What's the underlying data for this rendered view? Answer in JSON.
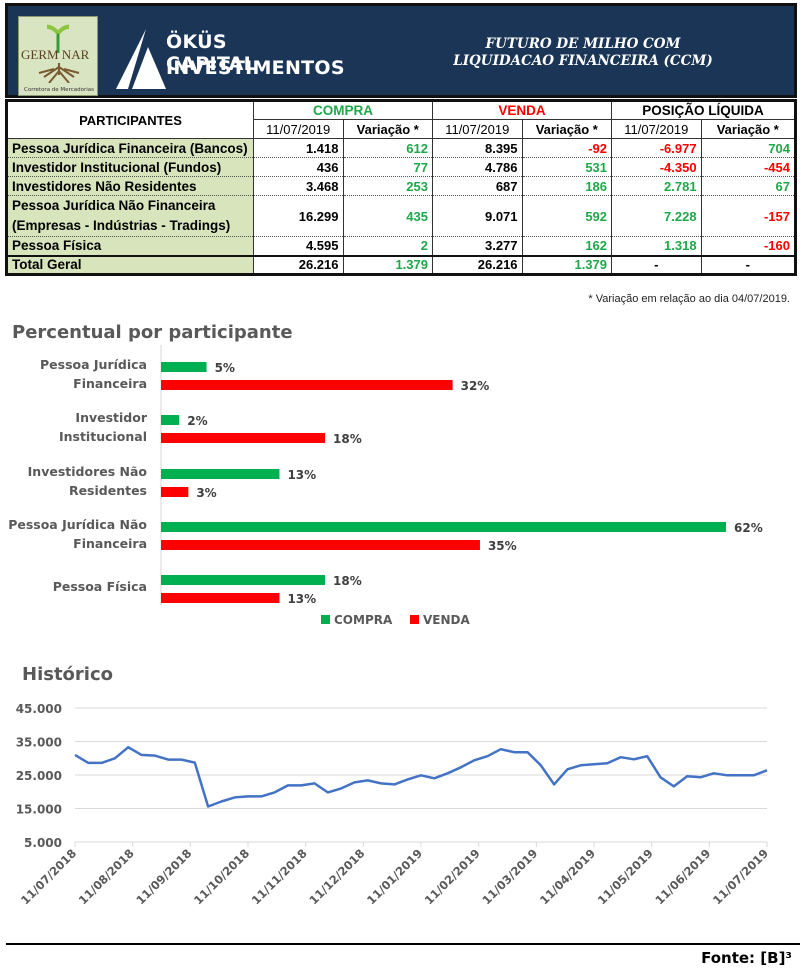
{
  "header": {
    "logo_left_text": "GERM NAR",
    "logo_left_sub": "Corretora de Mercadorias",
    "brand_line1": "ÖKÜS CAPITAL",
    "brand_line2": "INVESTIMENTOS",
    "title_line1": "FUTURO DE MILHO COM",
    "title_line2": "LIQUIDACAO FINANCEIRA (CCM)"
  },
  "table": {
    "participants_header": "PARTICIPANTES",
    "groups": [
      {
        "label": "COMPRA",
        "color": "#1fa84a"
      },
      {
        "label": "VENDA",
        "color": "#ff0000"
      },
      {
        "label": "POSIÇÃO LÍQUIDA",
        "color": "#000000"
      }
    ],
    "sub_headers": [
      "11/07/2019",
      "Variação *",
      "11/07/2019",
      "Variação *",
      "11/07/2019",
      "Variação *"
    ],
    "rows": [
      {
        "name": "Pessoa Jurídica Financeira (Bancos)",
        "cells": [
          {
            "v": "1.418",
            "c": "black"
          },
          {
            "v": "612",
            "c": "green"
          },
          {
            "v": "8.395",
            "c": "black"
          },
          {
            "v": "-92",
            "c": "red"
          },
          {
            "v": "-6.977",
            "c": "red"
          },
          {
            "v": "704",
            "c": "green"
          }
        ]
      },
      {
        "name": "Investidor Institucional (Fundos)",
        "cells": [
          {
            "v": "436",
            "c": "black"
          },
          {
            "v": "77",
            "c": "green"
          },
          {
            "v": "4.786",
            "c": "black"
          },
          {
            "v": "531",
            "c": "green"
          },
          {
            "v": "-4.350",
            "c": "red"
          },
          {
            "v": "-454",
            "c": "red"
          }
        ]
      },
      {
        "name": "Investidores Não Residentes",
        "cells": [
          {
            "v": "3.468",
            "c": "black"
          },
          {
            "v": "253",
            "c": "green"
          },
          {
            "v": "687",
            "c": "black"
          },
          {
            "v": "186",
            "c": "green"
          },
          {
            "v": "2.781",
            "c": "green"
          },
          {
            "v": "67",
            "c": "green"
          }
        ]
      },
      {
        "name": "Pessoa Jurídica Não Financeira",
        "name2": "(Empresas - Indústrias - Tradings)",
        "cells": [
          {
            "v": "16.299",
            "c": "black"
          },
          {
            "v": "435",
            "c": "green"
          },
          {
            "v": "9.071",
            "c": "black"
          },
          {
            "v": "592",
            "c": "green"
          },
          {
            "v": "7.228",
            "c": "green"
          },
          {
            "v": "-157",
            "c": "red"
          }
        ]
      },
      {
        "name": "Pessoa Física",
        "cells": [
          {
            "v": "4.595",
            "c": "black"
          },
          {
            "v": "2",
            "c": "green"
          },
          {
            "v": "3.277",
            "c": "black"
          },
          {
            "v": "162",
            "c": "green"
          },
          {
            "v": "1.318",
            "c": "green"
          },
          {
            "v": "-160",
            "c": "red"
          }
        ]
      },
      {
        "name": "Total Geral",
        "cells": [
          {
            "v": "26.216",
            "c": "black"
          },
          {
            "v": "1.379",
            "c": "green"
          },
          {
            "v": "26.216",
            "c": "black"
          },
          {
            "v": "1.379",
            "c": "green"
          },
          {
            "v": "-",
            "c": "black"
          },
          {
            "v": "-",
            "c": "black"
          }
        ]
      }
    ],
    "footnote": "* Variação em relação ao dia 04/07/2019."
  },
  "chart_data": [
    {
      "type": "bar",
      "orientation": "horizontal",
      "title": "Percentual por participante",
      "categories": [
        [
          "Pessoa Jurídica",
          "Financeira"
        ],
        [
          "Investidor",
          "Institucional"
        ],
        [
          "Investidores Não",
          "Residentes"
        ],
        [
          "Pessoa Jurídica Não",
          "Financeira"
        ],
        [
          "Pessoa Física"
        ]
      ],
      "series": [
        {
          "name": "COMPRA",
          "color": "#00b050",
          "values": [
            5,
            2,
            13,
            62,
            18
          ]
        },
        {
          "name": "VENDA",
          "color": "#ff0000",
          "values": [
            32,
            18,
            3,
            35,
            13
          ]
        }
      ],
      "value_suffix": "%",
      "xlim": [
        0,
        62
      ],
      "legend": "bottom",
      "grid": false
    },
    {
      "type": "line",
      "title": "Histórico",
      "color": "#4472c4",
      "ylim": [
        5000,
        45000
      ],
      "yticks": [
        "5.000",
        "15.000",
        "25.000",
        "35.000",
        "45.000"
      ],
      "ytick_values": [
        5000,
        15000,
        25000,
        35000,
        45000
      ],
      "xticks": [
        "11/07/2018",
        "11/08/2018",
        "11/09/2018",
        "11/10/2018",
        "11/11/2018",
        "11/12/2018",
        "11/01/2019",
        "11/02/2019",
        "11/03/2019",
        "11/04/2019",
        "11/05/2019",
        "11/06/2019",
        "11/07/2019"
      ],
      "grid": true,
      "values": [
        31000,
        28600,
        28600,
        30000,
        33300,
        31000,
        30800,
        29600,
        29600,
        28700,
        15600,
        17100,
        18300,
        18600,
        18600,
        19800,
        21900,
        21900,
        22500,
        19800,
        21000,
        22800,
        23400,
        22500,
        22200,
        23700,
        24900,
        24000,
        25500,
        27300,
        29400,
        30600,
        32700,
        31800,
        31800,
        27900,
        22200,
        26700,
        27900,
        28200,
        28500,
        30300,
        29700,
        30600,
        24300,
        21600,
        24600,
        24300,
        25500,
        24900,
        24900,
        24900,
        26400
      ]
    }
  ],
  "legend": {
    "compra": "COMPRA",
    "venda": "VENDA"
  },
  "footer": {
    "source": "Fonte: [B]³"
  }
}
